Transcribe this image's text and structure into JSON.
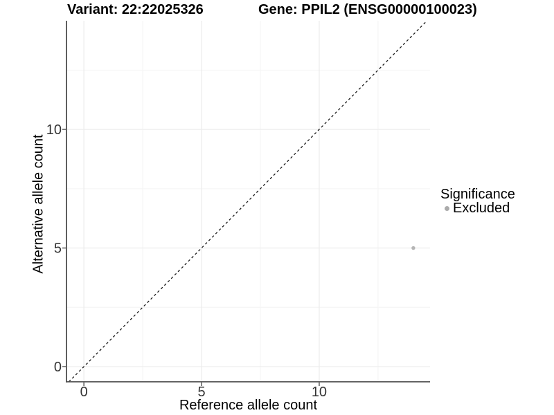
{
  "header": {
    "variant_title": "Variant: 22:22025326",
    "gene_title": "Gene: PPIL2 (ENSG00000100023)"
  },
  "axes": {
    "x_title": "Reference allele count",
    "y_title": "Alternative allele count"
  },
  "legend": {
    "title": "Significance",
    "items": [
      {
        "label": "Excluded",
        "color": "#ababab"
      }
    ]
  },
  "chart_data": {
    "type": "scatter",
    "title_left": "Variant: 22:22025326",
    "title_right": "Gene: PPIL2 (ENSG00000100023)",
    "xlabel": "Reference allele count",
    "ylabel": "Alternative allele count",
    "xlim": [
      -0.74,
      14.71
    ],
    "ylim": [
      -0.64,
      14.58
    ],
    "x_ticks": [
      0,
      5,
      10
    ],
    "y_ticks": [
      0,
      5,
      10
    ],
    "x_minor_ticks": [
      2.5,
      7.5,
      12.5
    ],
    "y_minor_ticks": [
      2.5,
      7.5,
      12.5
    ],
    "grid": true,
    "legend_position": "right",
    "reference_line": {
      "type": "identity",
      "style": "dashed",
      "color": "#1a1a1a"
    },
    "series": [
      {
        "name": "Excluded",
        "color": "#b5b5b5",
        "points": [
          {
            "x": 14,
            "y": 5
          }
        ]
      }
    ]
  },
  "colors": {
    "grid_major": "#ebebeb",
    "grid_minor": "#f4f4f4",
    "axis_line": "#4d4d4d",
    "tick_label": "#333333",
    "background": "#ffffff"
  }
}
